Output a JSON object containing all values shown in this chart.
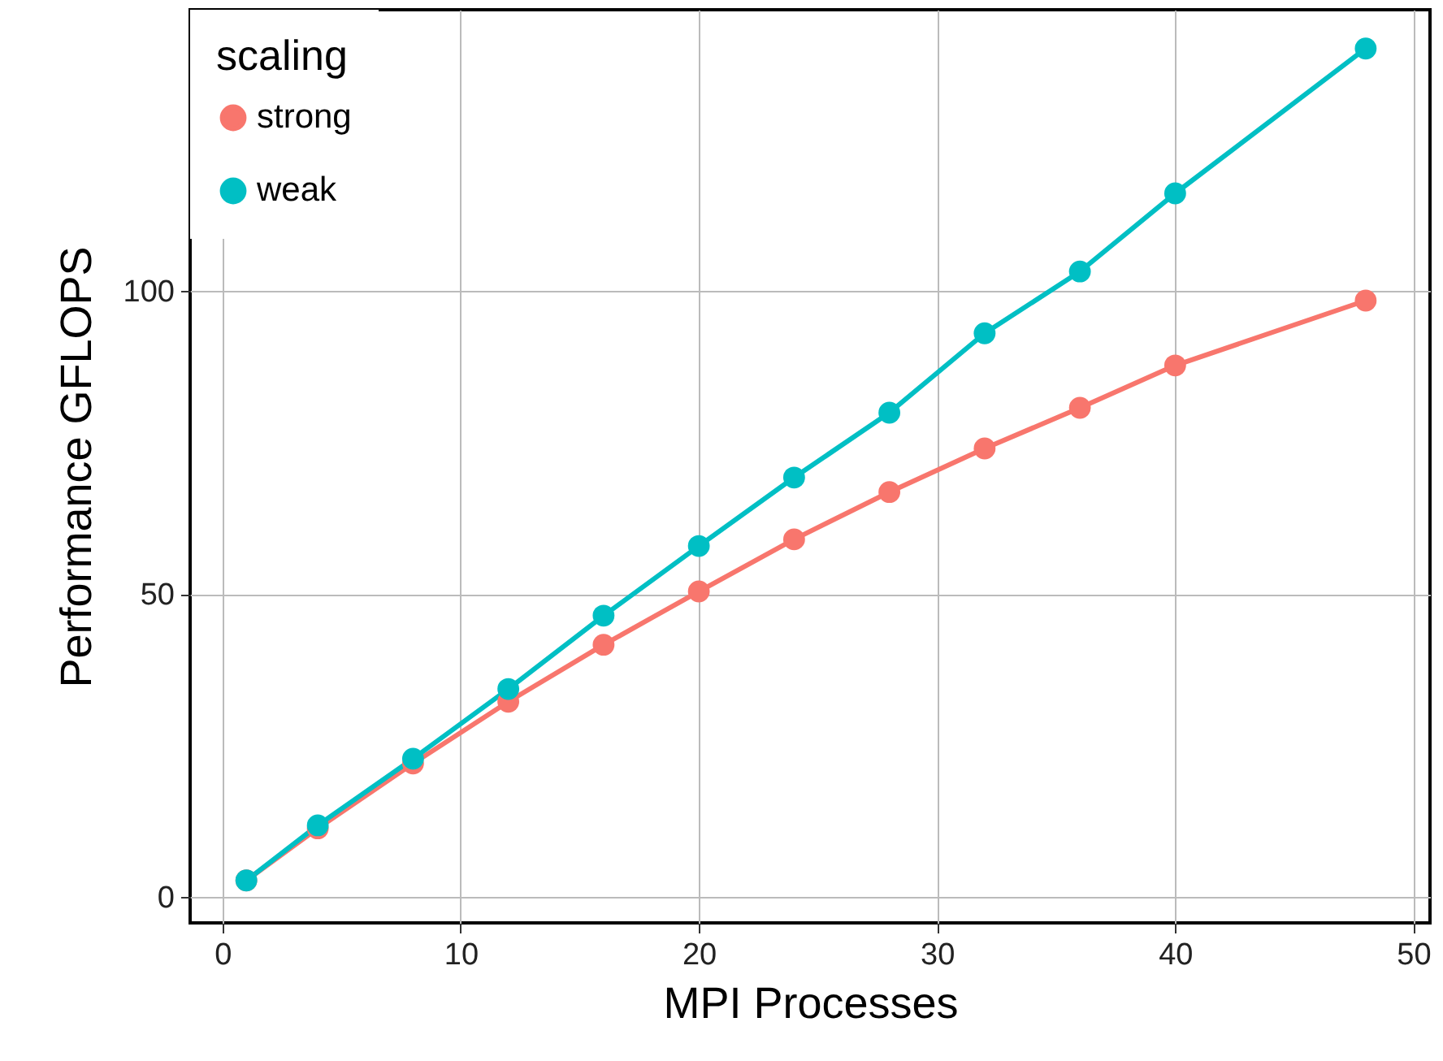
{
  "chart_data": {
    "type": "line",
    "xlabel": "MPI Processes",
    "ylabel": "Performance GFLOPS",
    "legend_title": "scaling",
    "x": [
      1,
      4,
      8,
      12,
      16,
      20,
      24,
      28,
      32,
      36,
      40,
      48
    ],
    "series": [
      {
        "name": "strong",
        "color": "#f8766d",
        "values": [
          2.7,
          11.3,
          22,
          32.2,
          41.6,
          50.4,
          59,
          66.8,
          74,
          80.7,
          87.7,
          98.4
        ]
      },
      {
        "name": "weak",
        "color": "#00bfc4",
        "values": [
          2.7,
          11.8,
          22.8,
          34.3,
          46.4,
          57.9,
          69.2,
          79.9,
          93,
          103.2,
          116.1,
          140
        ]
      }
    ],
    "xlim": [
      -1.36,
      50.7
    ],
    "xticks": [
      0,
      10,
      20,
      30,
      40,
      50
    ],
    "ylim": [
      -4.3,
      146.4
    ],
    "yticks": [
      0,
      50,
      100
    ],
    "grid": true,
    "legend": "top left",
    "marker": "circle",
    "line_style": "solid"
  }
}
